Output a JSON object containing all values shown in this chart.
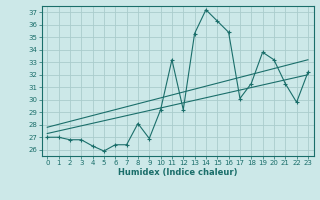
{
  "xlabel": "Humidex (Indice chaleur)",
  "bg_color": "#cce8e8",
  "grid_color": "#aacccc",
  "line_color": "#1a6e6a",
  "x_data": [
    0,
    1,
    2,
    3,
    4,
    5,
    6,
    7,
    8,
    9,
    10,
    11,
    12,
    13,
    14,
    15,
    16,
    17,
    18,
    19,
    20,
    21,
    22,
    23
  ],
  "y_data": [
    27.0,
    27.0,
    26.8,
    26.8,
    26.3,
    25.9,
    26.4,
    26.4,
    28.1,
    26.9,
    29.2,
    33.2,
    29.2,
    35.3,
    37.2,
    36.3,
    35.4,
    30.1,
    31.3,
    33.8,
    33.2,
    31.3,
    29.8,
    32.2
  ],
  "trend1_x": [
    0,
    23
  ],
  "trend1_y": [
    27.3,
    32.0
  ],
  "trend2_x": [
    0,
    23
  ],
  "trend2_y": [
    27.8,
    33.2
  ],
  "ylim": [
    25.5,
    37.5
  ],
  "xlim": [
    -0.5,
    23.5
  ],
  "yticks": [
    26,
    27,
    28,
    29,
    30,
    31,
    32,
    33,
    34,
    35,
    36,
    37
  ],
  "xticks": [
    0,
    1,
    2,
    3,
    4,
    5,
    6,
    7,
    8,
    9,
    10,
    11,
    12,
    13,
    14,
    15,
    16,
    17,
    18,
    19,
    20,
    21,
    22,
    23
  ]
}
